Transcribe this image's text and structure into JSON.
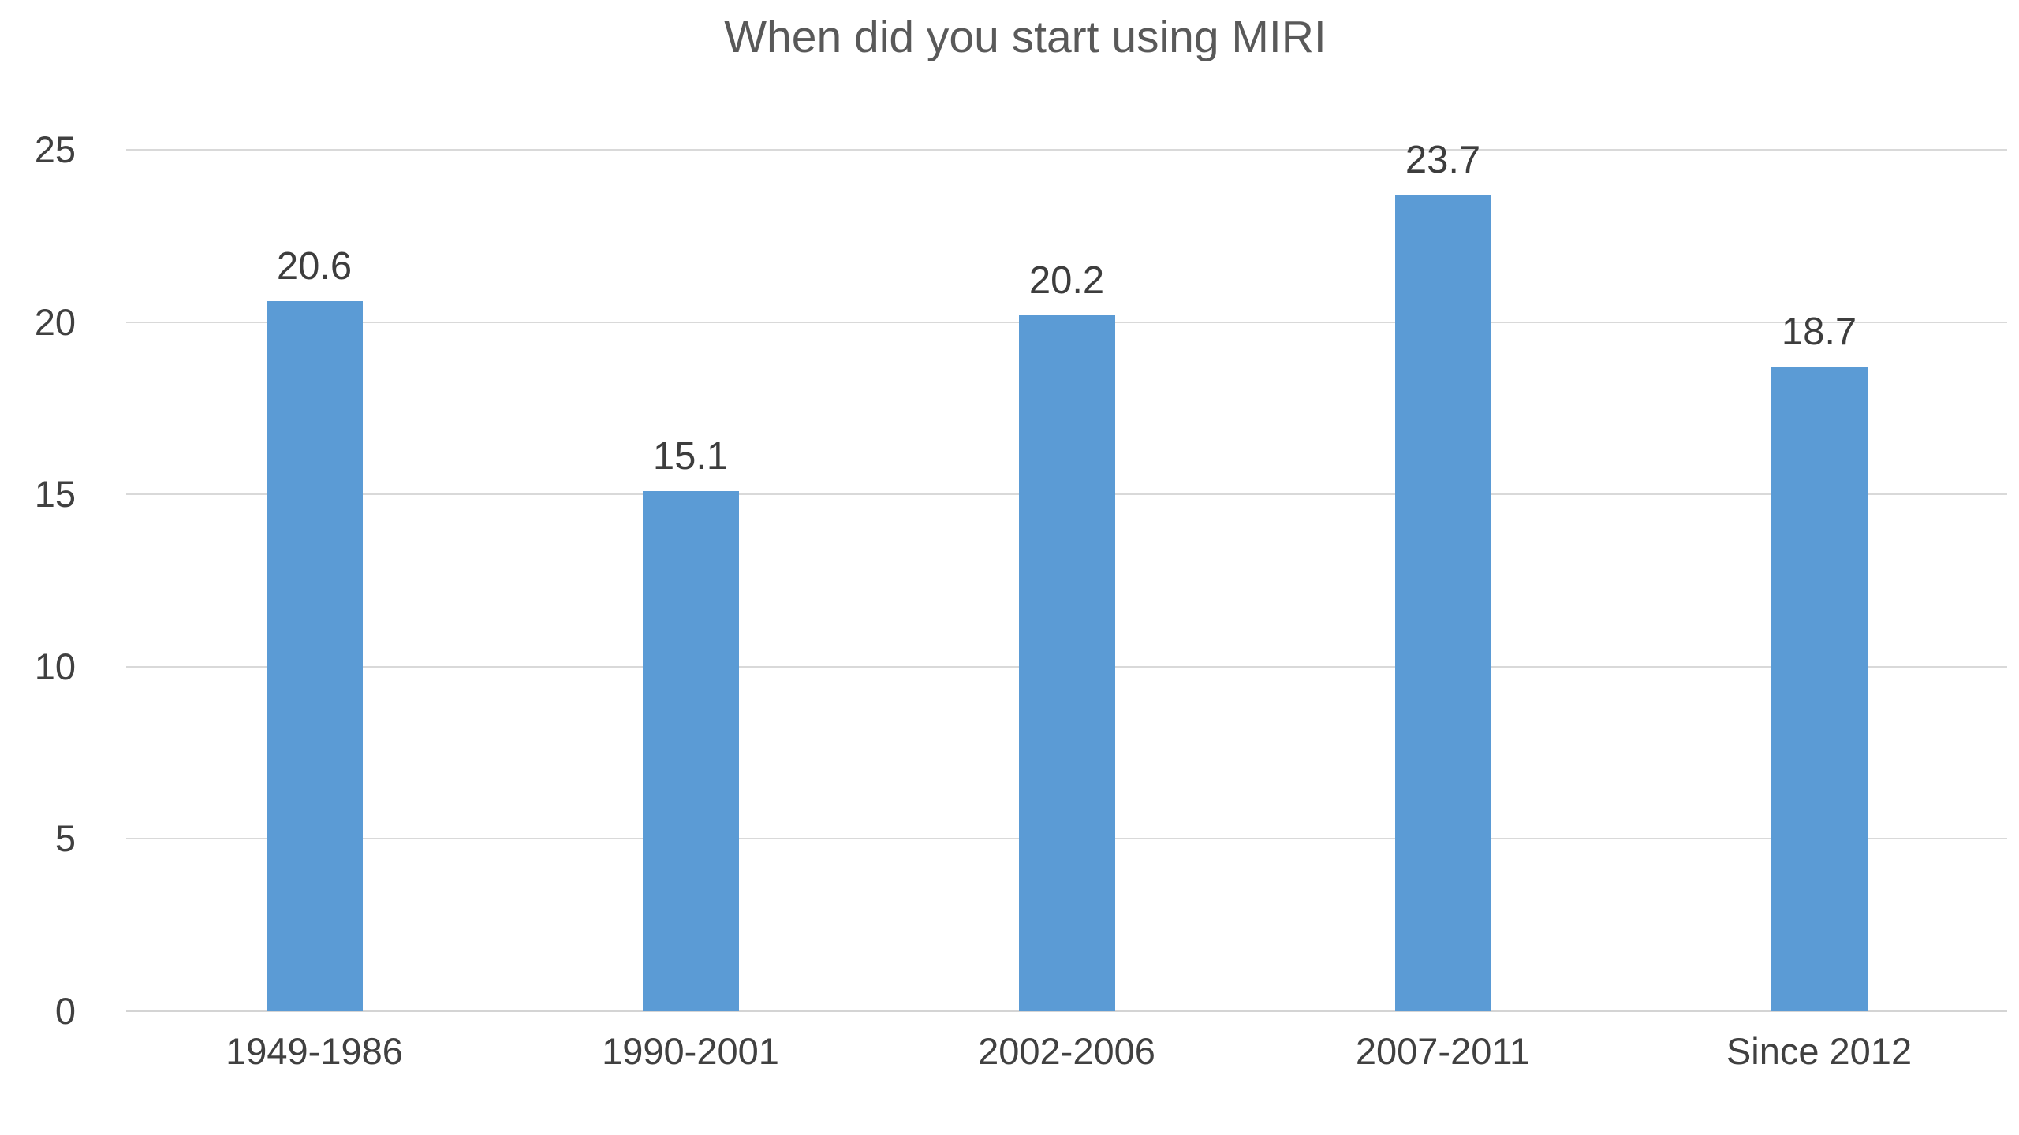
{
  "chart_data": {
    "type": "bar",
    "title": "When did you start using MIRI",
    "categories": [
      "1949-1986",
      "1990-2001",
      "2002-2006",
      "2007-2011",
      "Since 2012"
    ],
    "values": [
      20.6,
      15.1,
      20.2,
      23.7,
      18.7
    ],
    "value_labels": [
      "20.6",
      "15.1",
      "20.2",
      "23.7",
      "18.7"
    ],
    "xlabel": "",
    "ylabel": "",
    "ylim": [
      0,
      25
    ],
    "yticks": [
      0,
      5,
      10,
      15,
      20,
      25
    ],
    "grid": "horizontal-only",
    "legend": "none",
    "colors": {
      "bar": "#5B9BD5",
      "title_text": "#595959",
      "tick_text": "#404040",
      "data_label_text": "#3d3d3d",
      "gridline": "#D9D9D9",
      "baseline": "#D4D4D4",
      "background": "#FFFFFF"
    }
  }
}
